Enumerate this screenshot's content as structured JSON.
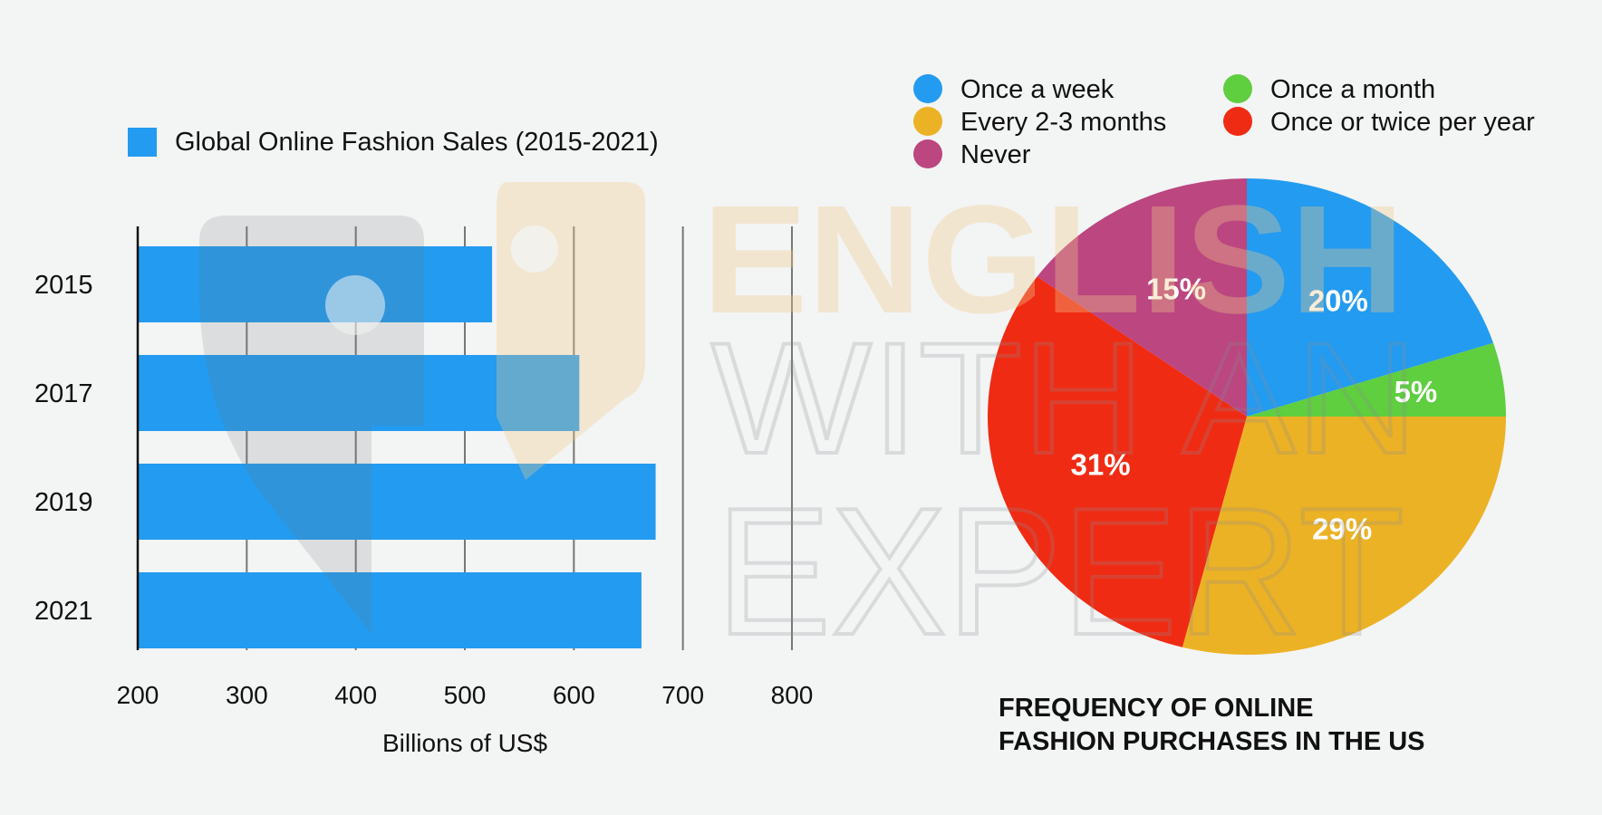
{
  "bar_legend": {
    "label": "Global Online Fashion Sales (2015-2021)",
    "color": "#239bf0"
  },
  "pie_title": {
    "line1": "FREQUENCY OF ONLINE",
    "line2": "FASHION PURCHASES IN THE US"
  },
  "watermark": {
    "line1": "ENGLISH",
    "line2": "WITH AN",
    "line3": "EXPERT"
  },
  "chart_data": [
    {
      "type": "bar",
      "orientation": "horizontal",
      "categories": [
        "2015",
        "2017",
        "2019",
        "2021"
      ],
      "series": [
        {
          "name": "Global Online Fashion Sales (2015-2021)",
          "values": [
            525,
            605,
            675,
            662
          ],
          "color": "#239bf0"
        }
      ],
      "xlabel": "Billions of US$",
      "xlim": [
        200,
        800
      ],
      "xticks": [
        "200",
        "300",
        "400",
        "500",
        "600",
        "700",
        "800"
      ],
      "grid": true,
      "legend": "top"
    },
    {
      "type": "pie",
      "title": "FREQUENCY OF ONLINE FASHION PURCHASES IN THE US",
      "slices": [
        {
          "label": "Once a week",
          "value": 20,
          "display": "20%",
          "color": "#239bf0"
        },
        {
          "label": "Once a month",
          "value": 5,
          "display": "5%",
          "color": "#5fce3f"
        },
        {
          "label": "Every 2-3 months",
          "value": 29,
          "display": "29%",
          "color": "#ecb225"
        },
        {
          "label": "Once or twice per year",
          "value": 31,
          "display": "31%",
          "color": "#f02b14"
        },
        {
          "label": "Never",
          "value": 15,
          "display": "15%",
          "color": "#bb4680"
        }
      ],
      "legend_order": [
        "Once a week",
        "Once a month",
        "Every 2-3 months",
        "Once or twice per year",
        "Never"
      ],
      "legend": "top"
    }
  ]
}
